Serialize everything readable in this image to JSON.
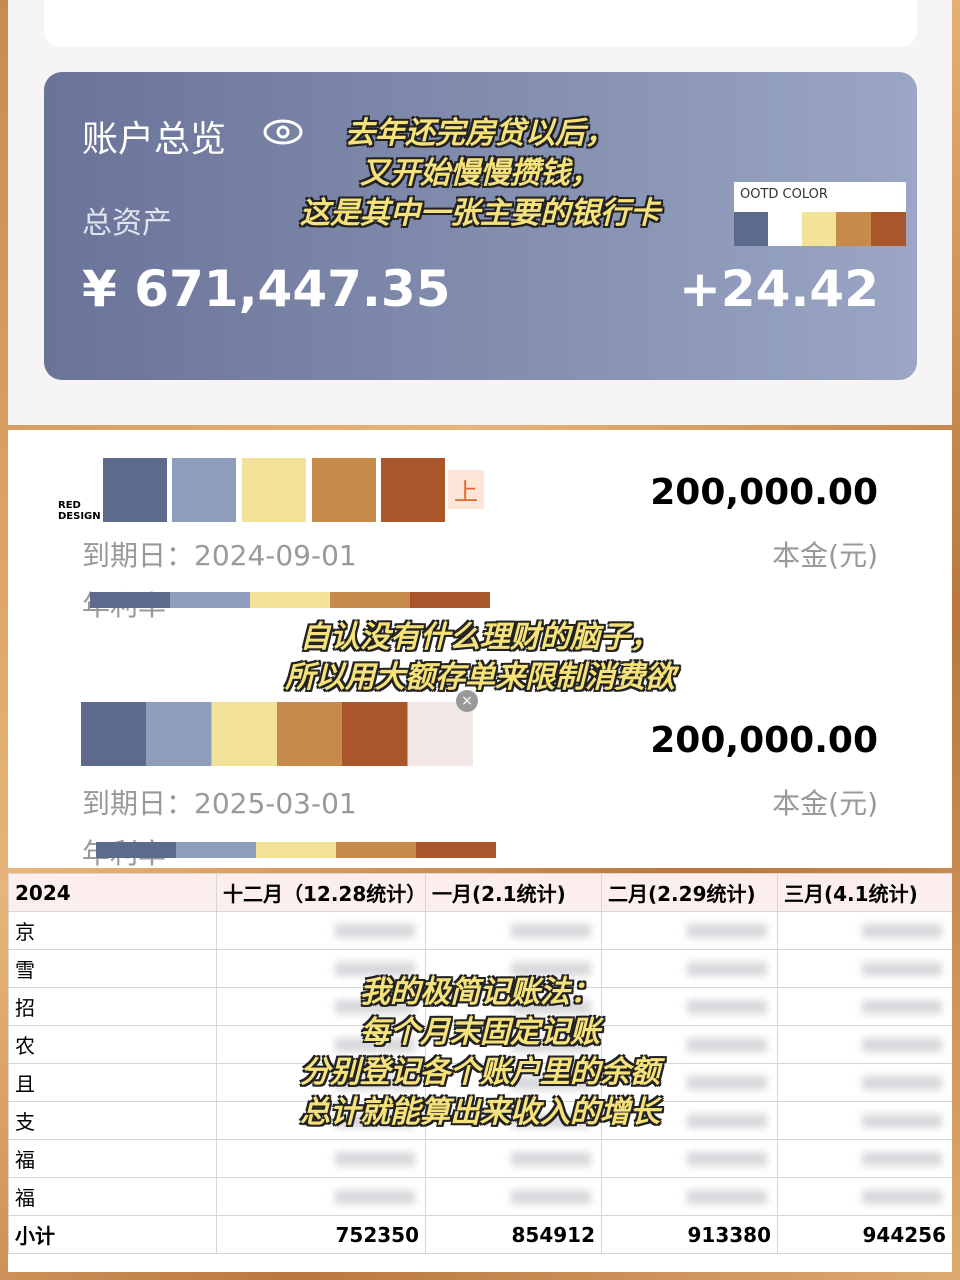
{
  "overview": {
    "title": "账户总览",
    "total_label": "总资产",
    "total": "¥ 671,447.35",
    "change": "+24.42",
    "palette_label": "OOTD COLOR"
  },
  "caption1": [
    "去年还完房贷以后，",
    "又开始慢慢攒钱，",
    "这是其中一张主要的银行卡"
  ],
  "deposits": {
    "brand": "RED\nDESIGN",
    "tag": "上",
    "items": [
      {
        "amount": "200,000.00",
        "due": "到期日：2024-09-01",
        "unit": "本金(元)",
        "rate_label": "年利率"
      },
      {
        "amount": "200,000.00",
        "due": "到期日：2025-03-01",
        "unit": "本金(元)",
        "rate_label": "年利率"
      }
    ]
  },
  "caption2": [
    "自认没有什么理财的脑子，",
    "所以用大额存单来限制消费欲"
  ],
  "table": {
    "header": [
      "2024",
      "十二月（12.28统计）",
      "一月(2.1统计)",
      "二月(2.29统计)",
      "三月(4.1统计)"
    ],
    "rows": [
      "京",
      "雪",
      "招",
      "农",
      "且",
      "支",
      "福",
      "福"
    ],
    "subtotal": [
      "小计",
      "752350",
      "854912",
      "913380",
      "944256"
    ]
  },
  "caption3": [
    "我的极简记账法：",
    "每个月末固定记账",
    "分别登记各个账户里的余额",
    "总计就能算出来收入的增长"
  ]
}
